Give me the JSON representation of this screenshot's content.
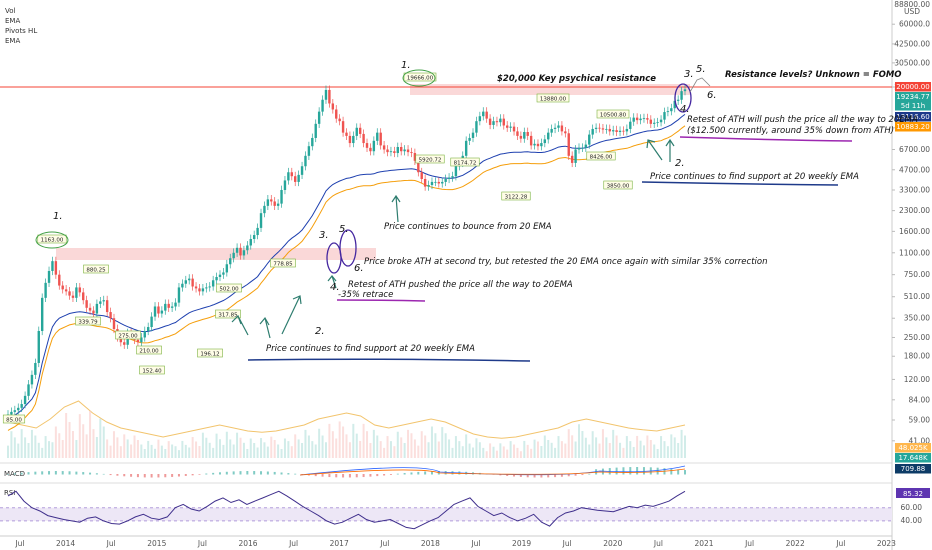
{
  "chart_data": {
    "type": "candlestick",
    "indicators_legend": [
      "Vol",
      "EMA",
      "Pivots HL",
      "EMA"
    ],
    "price_axis": {
      "scale": "log",
      "currency": "USD",
      "ticks": [
        "88000.00",
        "60000.0",
        "42500.00",
        "30500.00",
        "20000.00",
        "9800.00",
        "6700.00",
        "4700.00",
        "3300.00",
        "2300.00",
        "1600.00",
        "1100.00",
        "750.00",
        "510.00",
        "350.00",
        "250.00",
        "180.00",
        "120.00",
        "84.00",
        "59.00",
        "41.00"
      ],
      "top_tick_partial": "88800.00",
      "usd_label": "USD"
    },
    "time_axis": [
      "Jul",
      "2014",
      "Jul",
      "2015",
      "Jul",
      "2016",
      "Jul",
      "2017",
      "Jul",
      "2018",
      "Jul",
      "2019",
      "Jul",
      "2020",
      "Jul",
      "2021",
      "Jul",
      "2022",
      "Jul",
      "2023"
    ],
    "price_badges": [
      {
        "text": "20000.00",
        "color": "#f44336"
      },
      {
        "text": "19234.77",
        "color": "#26a69a"
      },
      {
        "text": "5d 11h",
        "color": "#26a69a"
      },
      {
        "text": "13116.60",
        "color": "#1e3a8a"
      },
      {
        "text": "10883.20",
        "color": "#ff9800"
      },
      {
        "text": "48.025K",
        "color": "#ffb74d"
      },
      {
        "text": "17.648K",
        "color": "#26a69a"
      },
      {
        "text": "709.88",
        "color": "#0d3b66"
      }
    ],
    "pivot_labels": [
      "85.00",
      "1163.00",
      "880.25",
      "339.79",
      "275.00",
      "210.00",
      "152.40",
      "317.85",
      "502.00",
      "778.85",
      "196.12",
      "19666.00",
      "5920.72",
      "8174.72",
      "3122.28",
      "13880.00",
      "10500.80",
      "8426.00",
      "3850.00"
    ],
    "weekly_close": [
      65,
      68,
      70,
      73,
      78,
      90,
      110,
      130,
      160,
      280,
      500,
      650,
      800,
      950,
      750,
      620,
      580,
      560,
      520,
      500,
      600,
      550,
      480,
      420,
      400,
      380,
      450,
      470,
      480,
      390,
      350,
      290,
      250,
      230,
      220,
      270,
      260,
      240,
      230,
      250,
      280,
      300,
      360,
      430,
      380,
      400,
      450,
      420,
      430,
      460,
      600,
      640,
      680,
      700,
      610,
      590,
      560,
      590,
      600,
      610,
      680,
      720,
      750,
      780,
      900,
      1000,
      1100,
      1200,
      1050,
      1150,
      1250,
      1400,
      1500,
      1700,
      2200,
      2500,
      2800,
      2700,
      2500,
      2600,
      3300,
      3900,
      4500,
      4200,
      3800,
      4300,
      5000,
      6000,
      7100,
      8200,
      10500,
      13000,
      16000,
      19000,
      15000,
      13500,
      11500,
      11000,
      9000,
      8500,
      7500,
      8500,
      9800,
      8800,
      7500,
      6900,
      6500,
      7800,
      9000,
      7200,
      6700,
      6400,
      6500,
      6300,
      7000,
      6500,
      6700,
      6400,
      6300,
      5500,
      4500,
      4000,
      3500,
      3600,
      3800,
      3800,
      3700,
      3800,
      4000,
      4100,
      4200,
      5000,
      5300,
      6000,
      7800,
      8200,
      9000,
      11000,
      12000,
      13000,
      11500,
      10300,
      11000,
      10800,
      11500,
      10200,
      9800,
      10000,
      9200,
      8500,
      8100,
      9100,
      8500,
      7200,
      7400,
      7100,
      7500,
      8000,
      9000,
      9600,
      9800,
      10200,
      9200,
      8900,
      6000,
      5300,
      6700,
      6900,
      6900,
      7300,
      8700,
      9600,
      9800,
      9700,
      9500,
      9600,
      9200,
      9400,
      9100,
      9300,
      9200,
      9600,
      10900,
      11700,
      11200,
      11500,
      11600,
      11300,
      10500,
      10700,
      10800,
      11300,
      12900,
      13100,
      13800,
      15700,
      16000,
      18600,
      19200
    ],
    "ema20_weekly": [
      60,
      62,
      64,
      67,
      70,
      75,
      80,
      85,
      95,
      120,
      160,
      200,
      250,
      300,
      330,
      350,
      360,
      370,
      380,
      385,
      390,
      392,
      390,
      385,
      380,
      375,
      370,
      368,
      365,
      360,
      352,
      340,
      330,
      320,
      310,
      302,
      295,
      288,
      282,
      278,
      277,
      278,
      282,
      288,
      292,
      298,
      305,
      310,
      318,
      325,
      340,
      355,
      370,
      385,
      395,
      403,
      410,
      418,
      425,
      432,
      442,
      453,
      465,
      477,
      494,
      515,
      540,
      566,
      586,
      608,
      632,
      662,
      692,
      725,
      788,
      846,
      920,
      990,
      1050,
      1110,
      1180,
      1260,
      1350,
      1420,
      1480,
      1550,
      1640,
      1780,
      1930,
      2110,
      2340,
      2600,
      2900,
      3250,
      3450,
      3630,
      3750,
      3860,
      3950,
      4040,
      4080,
      4150,
      4240,
      4300,
      4330,
      4340,
      4340,
      4380,
      4480,
      4540,
      4580,
      4610,
      4650,
      4670,
      4700,
      4720,
      4750,
      4760,
      4780,
      4750,
      4650,
      4530,
      4400,
      4300,
      4220,
      4170,
      4120,
      4080,
      4060,
      4050,
      4050,
      4100,
      4180,
      4270,
      4420,
      4580,
      4760,
      5000,
      5220,
      5470,
      5640,
      5760,
      5910,
      6030,
      6180,
      6240,
      6300,
      6360,
      6390,
      6390,
      6380,
      6420,
      6440,
      6390,
      6380,
      6360,
      6360,
      6400,
      6500,
      6640,
      6810,
      6990,
      7060,
      7100,
      7000,
      6880,
      6850,
      6840,
      6860,
      6900,
      7030,
      7240,
      7420,
      7590,
      7740,
      7860,
      7920,
      8040,
      8120,
      8200,
      8270,
      8350,
      8510,
      8710,
      8860,
      9000,
      9150,
      9260,
      9300,
      9370,
      9430,
      9540,
      9800,
      10030,
      10330,
      10790,
      11260,
      11850,
      12380
    ],
    "volume_ma_relative": [
      0.55,
      0.5,
      0.45,
      0.6,
      0.8,
      0.9,
      0.7,
      0.55,
      0.45,
      0.4,
      0.35,
      0.3,
      0.35,
      0.4,
      0.45,
      0.5,
      0.45,
      0.4,
      0.38,
      0.4,
      0.45,
      0.5,
      0.6,
      0.65,
      0.7,
      0.65,
      0.5,
      0.45,
      0.5,
      0.55,
      0.6,
      0.55,
      0.45,
      0.35,
      0.3,
      0.28,
      0.3,
      0.35,
      0.4,
      0.45,
      0.55,
      0.6,
      0.55,
      0.5,
      0.45,
      0.42,
      0.4,
      0.45,
      0.5
    ],
    "rsi": [
      78,
      85,
      70,
      60,
      55,
      48,
      45,
      42,
      40,
      38,
      44,
      46,
      40,
      36,
      35,
      40,
      46,
      50,
      44,
      42,
      46,
      60,
      65,
      58,
      55,
      62,
      70,
      75,
      68,
      72,
      65,
      70,
      75,
      80,
      85,
      78,
      70,
      62,
      55,
      48,
      40,
      35,
      38,
      44,
      50,
      42,
      38,
      40,
      42,
      36,
      30,
      28,
      34,
      40,
      45,
      55,
      65,
      70,
      75,
      62,
      55,
      48,
      52,
      45,
      40,
      44,
      50,
      38,
      32,
      45,
      52,
      55,
      60,
      58,
      56,
      55,
      54,
      58,
      62,
      60,
      64,
      62,
      66,
      70,
      78,
      85
    ],
    "rsi_value": "85.32",
    "rsi_levels": [
      "60.00",
      "40.00"
    ],
    "indicator_titles": {
      "macd": "MACD",
      "rsi": "RSI"
    },
    "annotations": {
      "key_resistance": "$20,000 Key psychical resistance",
      "resistance_levels": "Resistance levels? Unknown = FOMO",
      "retest_ath_2020_line1": "Retest of ATH will push the price all the way to 20EMA",
      "retest_ath_2020_line2": "($12.500 currently, around 35% down from ATH)",
      "support_2020": "Price continues to find support at 20 weekly EMA",
      "bounce_20ema": "Price continues to bounce from 20 EMA",
      "broke_ath": "Price broke ATH at second try, but retested the 20 EMA once again with similar 35% correction",
      "retest_2017_line1": "Retest of ATH pushed the price all the way to 20EMA",
      "retest_2017_line2": "-35% retrace",
      "support_2016": "Price continues to find support at 20 weekly EMA"
    },
    "step_numbers": [
      "1.",
      "2.",
      "3.",
      "4.",
      "5.",
      "6."
    ],
    "colors": {
      "up": "#26a69a",
      "down": "#ef5350",
      "ema_fast": "#1e40af",
      "ema_slow": "#f59e0b",
      "resistance": "#f44336",
      "support_underline": "#1e3a8a",
      "retrace_underline": "#9c27b0",
      "rsi_line": "#3f2f8c",
      "rsi_band": "#ede7f6",
      "arrow": "#2e7d6f"
    }
  }
}
